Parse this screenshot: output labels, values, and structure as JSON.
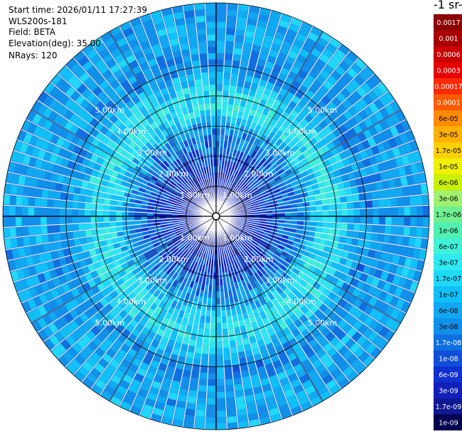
{
  "info": {
    "start_time": "Start time: 2026/01/11 17:27:39",
    "instrument": "WLS200s-181",
    "field": "Field: BETA",
    "elevation": "Elevation(deg): 35.00",
    "nrays": "NRays: 120"
  },
  "colorbar": {
    "title": "-1 sr-",
    "labels": [
      "0.0017",
      "0.001",
      "0.0006",
      "0.0003",
      "0.00017",
      "0.0001",
      "6e-05",
      "3e-05",
      "1.7e-05",
      "1e-05",
      "6e-06",
      "3e-06",
      "1.7e-06",
      "1e-06",
      "6e-07",
      "3e-07",
      "1.7e-07",
      "1e-07",
      "6e-08",
      "3e-08",
      "1.7e-08",
      "1e-08",
      "6e-09",
      "3e-09",
      "1.7e-09",
      "1e-09"
    ],
    "colors": [
      "#8b0000",
      "#a80000",
      "#c80000",
      "#e60000",
      "#ff2a00",
      "#ff5a00",
      "#ff8c00",
      "#ffb000",
      "#ffd000",
      "#f0f000",
      "#c8f000",
      "#a0f070",
      "#70f090",
      "#50f0b0",
      "#40f0d8",
      "#30e8f0",
      "#20d8f8",
      "#10c0f8",
      "#10a8f0",
      "#1090e8",
      "#1070e0",
      "#1050d8",
      "#1030d0",
      "#1020b8",
      "#101890",
      "#000050"
    ]
  },
  "chart_data": {
    "type": "heatmap",
    "projection": "polar-ppi",
    "rays": 120,
    "range_rings": [
      "1.00km",
      "2.00km",
      "3.00km",
      "4.00km",
      "5.00km"
    ],
    "ring_label_angles_deg": [
      45,
      135,
      225,
      315
    ],
    "max_range_km": 5.8,
    "value_profile_by_range": [
      {
        "range_km": 0.0,
        "value": 1e-09
      },
      {
        "range_km": 1.0,
        "value": 3e-09
      },
      {
        "range_km": 2.0,
        "value": 1e-08
      },
      {
        "range_km": 2.8,
        "value": 3e-08
      },
      {
        "range_km": 3.6,
        "value": 3e-07
      },
      {
        "range_km": 4.3,
        "value": 1.7e-07
      },
      {
        "range_km": 5.0,
        "value": 3e-08
      },
      {
        "range_km": 5.8,
        "value": 6e-08
      }
    ]
  }
}
